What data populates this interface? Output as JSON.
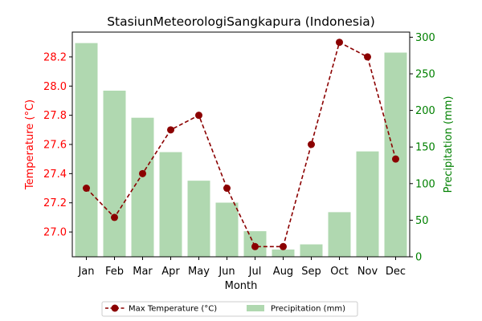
{
  "chart_data": {
    "type": "bar+line",
    "title": "StasiunMeteorologiSangkapura (Indonesia)",
    "xlabel": "Month",
    "categories": [
      "Jan",
      "Feb",
      "Mar",
      "Apr",
      "May",
      "Jun",
      "Jul",
      "Aug",
      "Sep",
      "Oct",
      "Nov",
      "Dec"
    ],
    "left_axis": {
      "label": "Temperature (°C)",
      "color": "#ff0000",
      "ylim": [
        26.83,
        28.37
      ],
      "ticks": [
        "27.0",
        "27.2",
        "27.4",
        "27.6",
        "27.8",
        "28.0",
        "28.2"
      ]
    },
    "right_axis": {
      "label": "Precipitation (mm)",
      "color": "#008000",
      "ylim": [
        0,
        307
      ],
      "ticks": [
        "0",
        "50",
        "100",
        "150",
        "200",
        "250",
        "300"
      ]
    },
    "series": [
      {
        "name": "Max Temperature (°C)",
        "type": "line",
        "axis": "left",
        "color": "#8b0000",
        "style": "dashed, circle markers",
        "values": [
          27.3,
          27.1,
          27.4,
          27.7,
          27.8,
          27.3,
          26.9,
          26.9,
          27.6,
          28.3,
          28.2,
          27.5
        ]
      },
      {
        "name": "Precipitation (mm)",
        "type": "bar",
        "axis": "right",
        "color": "#b0d8b0",
        "values": [
          292,
          227,
          190,
          143,
          104,
          74,
          35,
          10,
          17,
          61,
          144,
          279
        ]
      }
    ],
    "legend_position": "bottom-center",
    "grid": false
  }
}
